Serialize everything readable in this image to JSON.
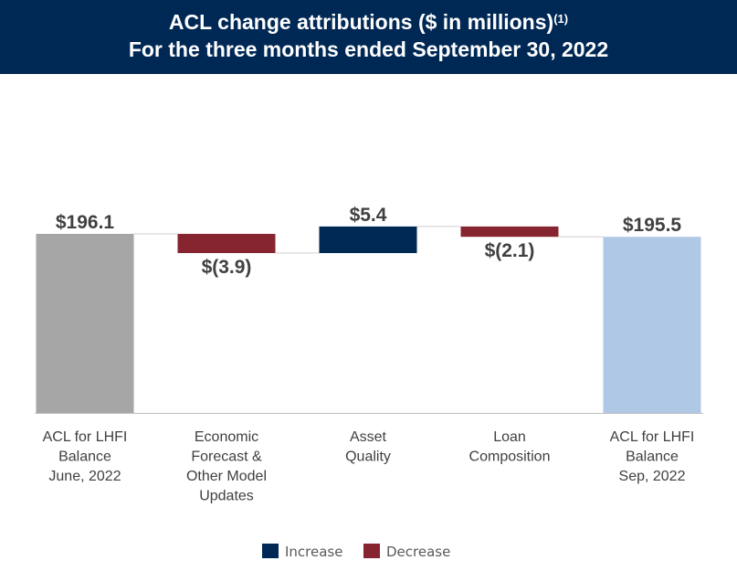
{
  "header": {
    "title_line1": "ACL change attributions ($ in millions)",
    "footnote_mark": "(1)",
    "title_line2": "For the three months ended September 30, 2022"
  },
  "chart_data": {
    "type": "waterfall",
    "categories": [
      [
        "ACL for LHFI",
        "Balance",
        "June, 2022"
      ],
      [
        "Economic",
        "Forecast &",
        "Other Model",
        "Updates"
      ],
      [
        "Asset",
        "Quality"
      ],
      [
        "Loan",
        "Composition"
      ],
      [
        "ACL for LHFI",
        "Balance",
        "Sep, 2022"
      ]
    ],
    "values": [
      196.1,
      -3.9,
      5.4,
      -2.1,
      195.5
    ],
    "kinds": [
      "total",
      "change",
      "change",
      "change",
      "total"
    ],
    "data_labels": [
      "$196.1",
      "$(3.9)",
      "$5.4",
      "$(2.1)",
      "$195.5"
    ],
    "ylim": [
      159.75,
      205
    ],
    "grid": false,
    "legend": {
      "placement": "bottom",
      "entries": [
        {
          "label": "Increase",
          "color": "#002855"
        },
        {
          "label": "Decrease",
          "color": "#86252f"
        }
      ]
    },
    "colors": {
      "start_total": "#a6a6a6",
      "end_total": "#afc8e6",
      "increase": "#002855",
      "decrease": "#86252f",
      "connector": "#d9d9d9",
      "axis": "#bfbfbf"
    }
  }
}
